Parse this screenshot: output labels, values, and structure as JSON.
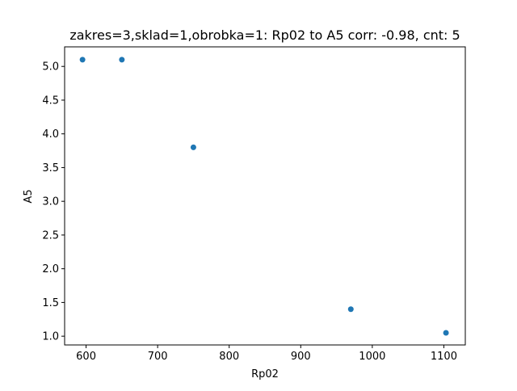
{
  "chart_data": {
    "type": "scatter",
    "title": "zakres=3,sklad=1,obrobka=1: Rp02 to A5 corr: -0.98, cnt: 5",
    "xlabel": "Rp02",
    "ylabel": "A5",
    "xlim": [
      570,
      1130
    ],
    "ylim": [
      0.87,
      5.29
    ],
    "xticks": [
      600,
      700,
      800,
      900,
      1000,
      1100
    ],
    "xtick_labels": [
      "600",
      "700",
      "800",
      "900",
      "1000",
      "1100"
    ],
    "yticks": [
      1.0,
      1.5,
      2.0,
      2.5,
      3.0,
      3.5,
      4.0,
      4.5,
      5.0
    ],
    "ytick_labels": [
      "1.0",
      "1.5",
      "2.0",
      "2.5",
      "3.0",
      "3.5",
      "4.0",
      "4.5",
      "5.0"
    ],
    "grid": false,
    "marker_color": "#1f77b4",
    "points": [
      {
        "x": 595,
        "y": 5.1
      },
      {
        "x": 650,
        "y": 5.1
      },
      {
        "x": 750,
        "y": 3.8
      },
      {
        "x": 970,
        "y": 1.4
      },
      {
        "x": 1103,
        "y": 1.05
      }
    ]
  }
}
